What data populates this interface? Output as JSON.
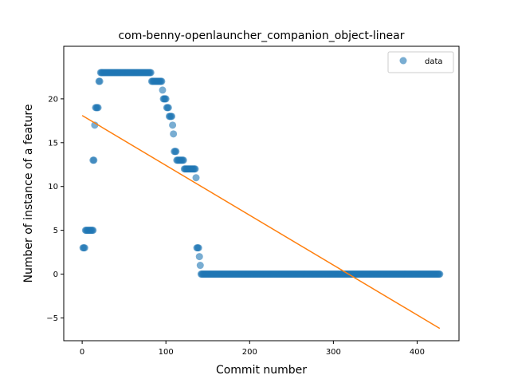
{
  "chart_data": {
    "type": "scatter",
    "title": "com-benny-openlauncher_companion_object-linear",
    "xlabel": "Commit number",
    "ylabel": "Number of instance of a feature",
    "xlim": [
      -22,
      450
    ],
    "ylim": [
      -7.6,
      26.0
    ],
    "xticks": [
      0,
      100,
      200,
      300,
      400
    ],
    "yticks": [
      -5,
      0,
      5,
      10,
      15,
      20
    ],
    "legend": {
      "position": "top-right",
      "entries": [
        "data"
      ]
    },
    "colors": {
      "data": "#1f77b4",
      "fit": "#ff7f0e"
    },
    "series": [
      {
        "name": "data",
        "kind": "scatter",
        "segments": [
          {
            "x": [
              1,
              2,
              3
            ],
            "y": 3
          },
          {
            "x": [
              4,
              5,
              6,
              7,
              8,
              9,
              10,
              11,
              12,
              13
            ],
            "y": 5
          },
          {
            "x": [
              13,
              14
            ],
            "y": 13
          },
          {
            "x": [
              15
            ],
            "y": 17
          },
          {
            "x": [
              16,
              17,
              18,
              19
            ],
            "y": 19
          },
          {
            "x": [
              20,
              21
            ],
            "y": 22
          },
          {
            "x_range": [
              22,
              82
            ],
            "step": 1,
            "y": 23
          },
          {
            "x_range": [
              83,
              95
            ],
            "step": 1,
            "y": 22
          },
          {
            "x": [
              96
            ],
            "y": 21
          },
          {
            "x": [
              97,
              98,
              99,
              100
            ],
            "y": 20
          },
          {
            "x": [
              101,
              102,
              103
            ],
            "y": 19
          },
          {
            "x": [
              104,
              105,
              106,
              107
            ],
            "y": 18
          },
          {
            "x": [
              108
            ],
            "y": 17
          },
          {
            "x": [
              109
            ],
            "y": 16
          },
          {
            "x": [
              110,
              111,
              112
            ],
            "y": 14
          },
          {
            "x_range": [
              113,
              121
            ],
            "step": 1,
            "y": 13
          },
          {
            "x_range": [
              122,
              135
            ],
            "step": 1,
            "y": 12
          },
          {
            "x": [
              136
            ],
            "y": 11
          },
          {
            "x": [
              137,
              138,
              139
            ],
            "y": 3
          },
          {
            "x": [
              140
            ],
            "y": 2
          },
          {
            "x": [
              141
            ],
            "y": 1
          },
          {
            "x_range": [
              142,
              427
            ],
            "step": 1,
            "y": 0
          }
        ]
      },
      {
        "kind": "line",
        "x": [
          0,
          427
        ],
        "y": [
          18.1,
          -6.2
        ]
      }
    ]
  }
}
